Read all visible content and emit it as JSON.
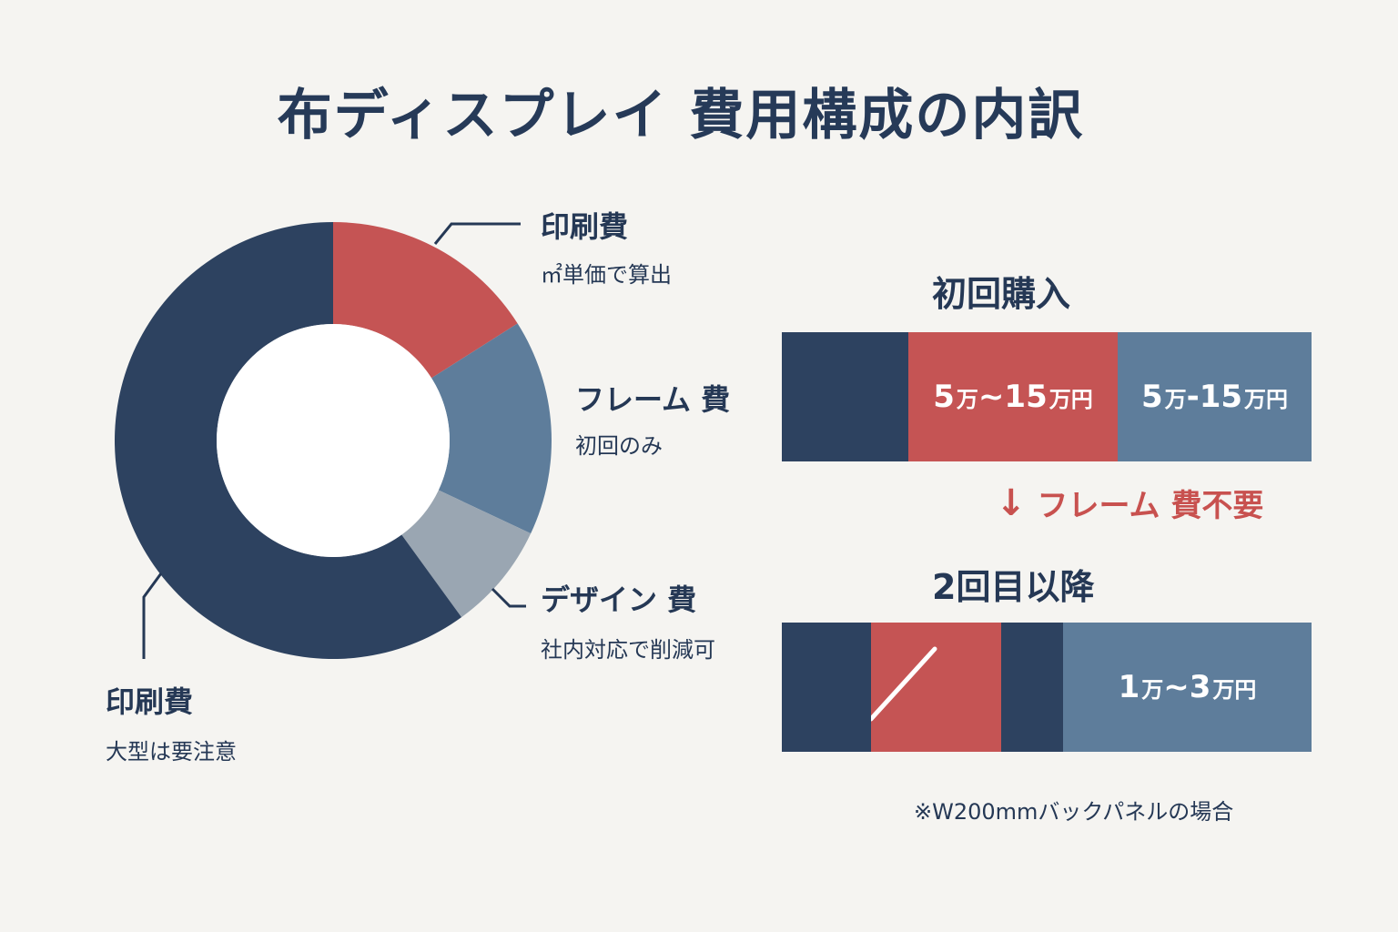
{
  "title": "布ディスプレイ  費用構成の内訳",
  "colors": {
    "navy": "#2d4260",
    "red": "#c55454",
    "steel": "#5e7d9b",
    "gray": "#9aa6b2",
    "bg": "#f5f4f1"
  },
  "chart_data": [
    {
      "type": "pie",
      "slices": [
        {
          "label": "印刷費",
          "note": "㎡単価で算出",
          "value": 16,
          "color": "#c55454"
        },
        {
          "label": "フレーム費",
          "note": "初回のみ",
          "value": 16,
          "color": "#5e7d9b"
        },
        {
          "label": "デザイン費",
          "note": "社内対応で削減可",
          "value": 8,
          "color": "#9aa6b2"
        },
        {
          "label": "印刷費",
          "note": "大型は要注意",
          "value": 60,
          "color": "#2d4260"
        }
      ]
    },
    {
      "type": "bar",
      "title": "初回購入",
      "segments": [
        {
          "amount": "",
          "unit": "",
          "color": "#2d4260",
          "width": 139
        },
        {
          "amount": "5",
          "unit": "万",
          "amount2": "~15",
          "unit2": "万円",
          "color": "#c55454",
          "width": 230
        },
        {
          "amount": "5",
          "unit": "万",
          "amount2": "-15",
          "unit2": "万円",
          "color": "#5e7d9b",
          "width": 213
        }
      ]
    },
    {
      "type": "bar",
      "title": "2回目以降",
      "segments": [
        {
          "amount": "",
          "color": "#2d4260",
          "width": 98
        },
        {
          "amount": "slash",
          "color": "#c55454",
          "width": 143
        },
        {
          "amount": "",
          "color": "#2d4260",
          "width": 68
        },
        {
          "amount": "1",
          "unit": "万",
          "amount2": "~3",
          "unit2": "万円",
          "color": "#5e7d9b",
          "width": 273
        }
      ]
    }
  ],
  "labels": {
    "print_top": {
      "main": "印刷費",
      "sub": "㎡単価で算出"
    },
    "frame": {
      "main": "フレーム 費",
      "sub": "初回のみ"
    },
    "design": {
      "main": "デザイン 費",
      "sub": "社内対応で削減可"
    },
    "print_bottom": {
      "main": "印刷費",
      "sub": "大型は要注意"
    }
  },
  "first_title": "初回購入",
  "first_seg2": {
    "n1": "5",
    "u1": "万",
    "n2": "~15",
    "u2": "万円"
  },
  "first_seg3": {
    "n1": "5",
    "u1": "万",
    "n2": "-15",
    "u2": "万円"
  },
  "arrow_glyph": "↓",
  "arrow_text": "フレーム 費不要",
  "second_title": "2回目以降",
  "second_seg4": {
    "n1": "1",
    "u1": "万",
    "n2": "~3",
    "u2": "万円"
  },
  "footnote": "※W200mmバックパネルの場合"
}
